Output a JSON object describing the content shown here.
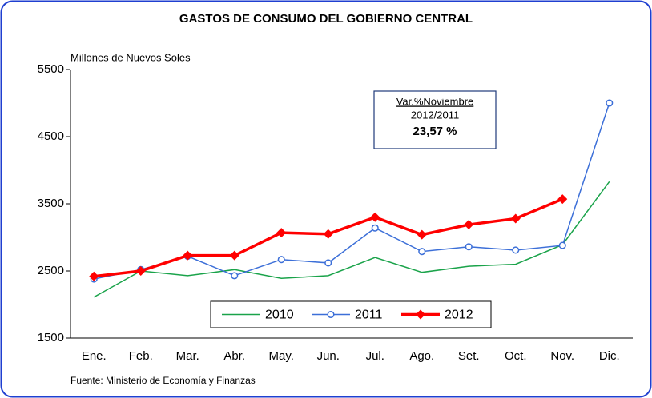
{
  "chart_data": {
    "type": "line",
    "title": "GASTOS DE CONSUMO DEL GOBIERNO CENTRAL",
    "y_label": "Millones de Nuevos Soles",
    "source": "Fuente: Ministerio de Economía y Finanzas",
    "annotation": [
      "Var.%Noviembre",
      "2012/2011",
      "23,57 %"
    ],
    "categories": [
      "Ene.",
      "Feb.",
      "Mar.",
      "Abr.",
      "May.",
      "Jun.",
      "Jul.",
      "Ago.",
      "Set.",
      "Oct.",
      "Nov.",
      "Dic."
    ],
    "series": [
      {
        "name": "2010",
        "color": "#1aa34a",
        "marker": "none",
        "values": [
          2110,
          2500,
          2430,
          2520,
          2390,
          2430,
          2700,
          2480,
          2570,
          2600,
          2890,
          3830
        ]
      },
      {
        "name": "2011",
        "color": "#3c6fd8",
        "marker": "circle",
        "values": [
          2380,
          2520,
          2720,
          2430,
          2670,
          2620,
          3140,
          2790,
          2860,
          2810,
          2880,
          5000
        ]
      },
      {
        "name": "2012",
        "color": "#ff0000",
        "marker": "diamond",
        "values": [
          2420,
          2500,
          2730,
          2730,
          3070,
          3050,
          3300,
          3040,
          3190,
          3280,
          3570,
          null
        ]
      }
    ],
    "ylim": [
      1500,
      5500
    ],
    "yticks": [
      1500,
      2500,
      3500,
      4500,
      5500
    ],
    "grid": false,
    "legend": "bottom"
  }
}
